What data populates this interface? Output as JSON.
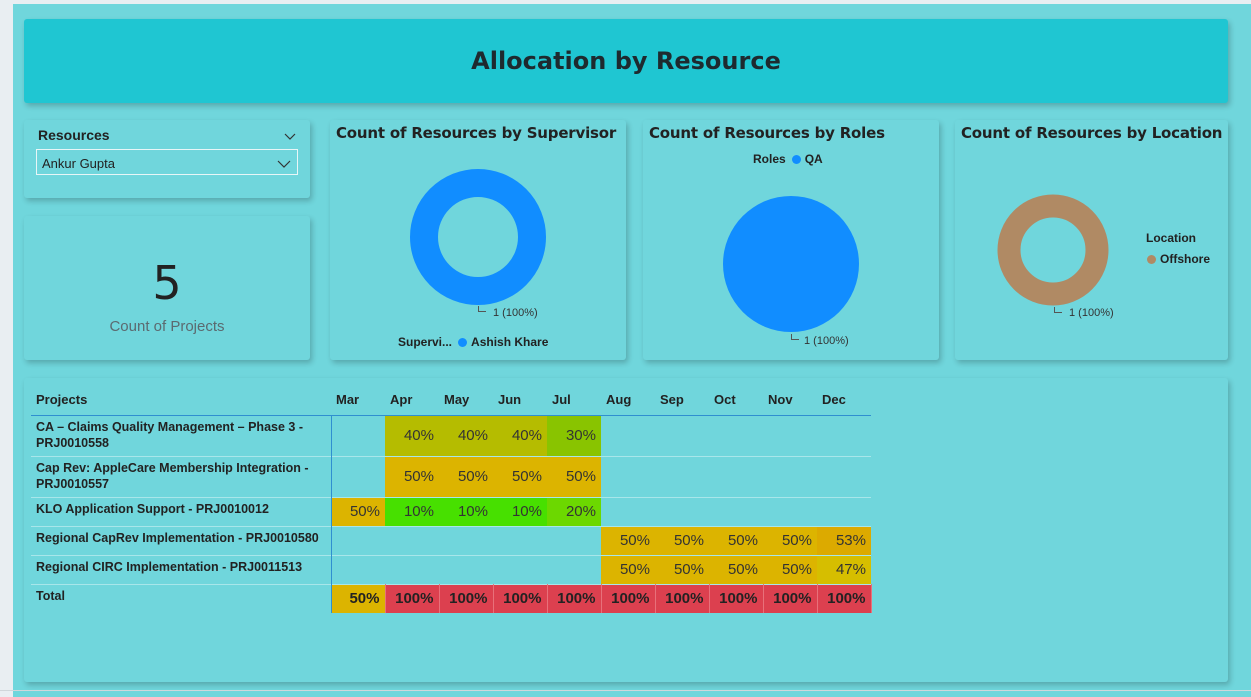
{
  "header": {
    "title": "Allocation by Resource"
  },
  "slicer": {
    "title": "Resources",
    "selected": "Ankur Gupta"
  },
  "kpi": {
    "value": "5",
    "label": "Count of Projects"
  },
  "charts": {
    "supervisor": {
      "title": "Count of Resources by Supervisor",
      "data_label": "1 (100%)",
      "legend_title": "Supervi...",
      "legend_item": "Ashish Khare",
      "color": "#118dff"
    },
    "roles": {
      "title": "Count of Resources by Roles",
      "data_label": "1 (100%)",
      "legend_title": "Roles",
      "legend_item": "QA",
      "color": "#118dff"
    },
    "location": {
      "title": "Count of Resources by Location",
      "data_label": "1 (100%)",
      "legend_title": "Location",
      "legend_item": "Offshore",
      "color": "#b08a64"
    }
  },
  "chart_data": [
    {
      "type": "pie",
      "variant": "donut",
      "title": "Count of Resources by Supervisor",
      "legend_title": "Supervi...",
      "categories": [
        "Ashish Khare"
      ],
      "values": [
        1
      ],
      "labels": [
        "1 (100%)"
      ]
    },
    {
      "type": "pie",
      "title": "Count of Resources by Roles",
      "legend_title": "Roles",
      "categories": [
        "QA"
      ],
      "values": [
        1
      ],
      "labels": [
        "1 (100%)"
      ]
    },
    {
      "type": "pie",
      "variant": "donut",
      "title": "Count of Resources by Location",
      "legend_title": "Location",
      "categories": [
        "Offshore"
      ],
      "values": [
        1
      ],
      "labels": [
        "1 (100%)"
      ]
    }
  ],
  "matrix": {
    "project_header": "Projects",
    "months": [
      "Mar",
      "Apr",
      "May",
      "Jun",
      "Jul",
      "Aug",
      "Sep",
      "Oct",
      "Nov",
      "Dec"
    ],
    "rows": [
      {
        "project": "CA – Claims Quality Management – Phase 3 - PRJ0010558",
        "tall": true,
        "cells": [
          "",
          "40%",
          "40%",
          "40%",
          "30%",
          "",
          "",
          "",
          "",
          ""
        ],
        "colors": [
          "",
          "#b5bc00",
          "#b5bc00",
          "#b5bc00",
          "#89c400",
          "",
          "",
          "",
          "",
          ""
        ]
      },
      {
        "project": "Cap Rev: AppleCare Membership Integration - PRJ0010557",
        "tall": true,
        "cells": [
          "",
          "50%",
          "50%",
          "50%",
          "50%",
          "",
          "",
          "",
          "",
          ""
        ],
        "colors": [
          "",
          "#dcb400",
          "#dcb400",
          "#dcb400",
          "#dcb400",
          "",
          "",
          "",
          "",
          ""
        ]
      },
      {
        "project": "KLO Application Support - PRJ0010012",
        "tall": false,
        "cells": [
          "50%",
          "10%",
          "10%",
          "10%",
          "20%",
          "",
          "",
          "",
          "",
          ""
        ],
        "colors": [
          "#dcb400",
          "#47e000",
          "#47e000",
          "#47e000",
          "#6cd800",
          "",
          "",
          "",
          "",
          ""
        ]
      },
      {
        "project": "Regional CapRev Implementation - PRJ0010580",
        "tall": false,
        "cells": [
          "",
          "",
          "",
          "",
          "",
          "50%",
          "50%",
          "50%",
          "50%",
          "53%"
        ],
        "colors": [
          "",
          "",
          "",
          "",
          "",
          "#dcb400",
          "#dcb400",
          "#dcb400",
          "#dcb400",
          "#dcaa00"
        ]
      },
      {
        "project": "Regional CIRC Implementation - PRJ0011513",
        "tall": false,
        "cells": [
          "",
          "",
          "",
          "",
          "",
          "50%",
          "50%",
          "50%",
          "50%",
          "47%"
        ],
        "colors": [
          "",
          "",
          "",
          "",
          "",
          "#dcb400",
          "#dcb400",
          "#dcb400",
          "#dcb400",
          "#d6be00"
        ]
      }
    ],
    "total": {
      "label": "Total",
      "cells": [
        "50%",
        "100%",
        "100%",
        "100%",
        "100%",
        "100%",
        "100%",
        "100%",
        "100%",
        "100%"
      ],
      "colors": [
        "#dcb400",
        "#dc404f",
        "#dc404f",
        "#dc404f",
        "#dc404f",
        "#dc404f",
        "#dc404f",
        "#dc404f",
        "#dc404f",
        "#dc404f"
      ]
    }
  }
}
